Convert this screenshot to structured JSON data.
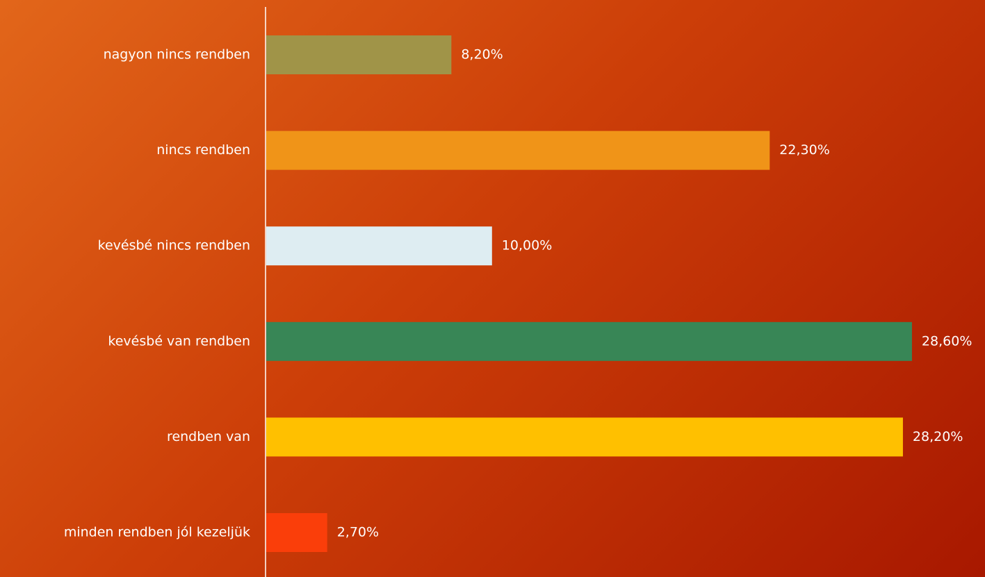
{
  "chart_data": {
    "type": "barh",
    "categories": [
      "nagyon nincs rendben",
      "nincs rendben",
      "kevésbé nincs rendben",
      "kevésbé van rendben",
      "rendben van",
      "minden rendben jól kezeljük"
    ],
    "values": [
      8.2,
      22.3,
      10,
      28.6,
      28.2,
      2.7
    ],
    "value_labels": [
      "8,20%",
      "22,30%",
      "10,00%",
      "28,60%",
      "28,20%",
      "2,70%"
    ],
    "colors": [
      "#a09448",
      "#f09418",
      "#deedf2",
      "#388656",
      "#ffc000",
      "#fa3e0a"
    ]
  }
}
